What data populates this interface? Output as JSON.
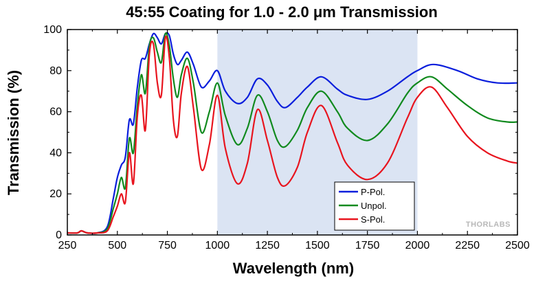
{
  "chart_data": {
    "type": "line",
    "title": "45:55 Coating for 1.0 - 2.0 μm Transmission",
    "xlabel": "Wavelength (nm)",
    "ylabel": "Transmission (%)",
    "xlim": [
      250,
      2500
    ],
    "ylim": [
      0,
      100
    ],
    "xticks": [
      250,
      500,
      750,
      1000,
      1250,
      1500,
      1750,
      2000,
      2250,
      2500
    ],
    "yticks": [
      0,
      20,
      40,
      60,
      80,
      100
    ],
    "grid": false,
    "legend_position": "bottom-right",
    "shaded_region": {
      "x": [
        1000,
        2000
      ],
      "color": "#dbe4f3"
    },
    "watermark": "THORLABS",
    "series": [
      {
        "name": "P-Pol.",
        "color": "#0a1edc",
        "x": [
          250,
          300,
          320,
          350,
          400,
          450,
          480,
          500,
          520,
          540,
          560,
          580,
          600,
          620,
          640,
          660,
          680,
          700,
          720,
          740,
          760,
          780,
          800,
          820,
          850,
          880,
          920,
          960,
          1000,
          1040,
          1100,
          1150,
          1200,
          1250,
          1300,
          1340,
          1400,
          1450,
          1520,
          1600,
          1650,
          1750,
          1850,
          1950,
          2000,
          2080,
          2200,
          2300,
          2400,
          2500
        ],
        "values": [
          1,
          1,
          2,
          1,
          1,
          4,
          18,
          28,
          34,
          38,
          56,
          54,
          72,
          85,
          86,
          93,
          98,
          96,
          93,
          98,
          97,
          88,
          83,
          85,
          89,
          83,
          72,
          75,
          80,
          70,
          64,
          67,
          76,
          73,
          65,
          62,
          67,
          72,
          77,
          71,
          68,
          66,
          70,
          77,
          80,
          83,
          80,
          76,
          74,
          74
        ]
      },
      {
        "name": "Unpol.",
        "color": "#118a1e",
        "x": [
          250,
          300,
          320,
          350,
          400,
          450,
          480,
          500,
          520,
          540,
          560,
          580,
          600,
          620,
          640,
          660,
          680,
          700,
          720,
          740,
          760,
          780,
          800,
          820,
          850,
          880,
          920,
          960,
          1000,
          1040,
          1100,
          1150,
          1200,
          1250,
          1300,
          1340,
          1400,
          1450,
          1520,
          1600,
          1650,
          1750,
          1850,
          1950,
          2000,
          2070,
          2150,
          2250,
          2350,
          2450,
          2500
        ],
        "values": [
          1,
          1,
          2,
          1,
          1,
          3,
          13,
          20,
          28,
          23,
          47,
          40,
          63,
          78,
          69,
          92,
          96,
          89,
          84,
          98,
          92,
          76,
          67,
          78,
          86,
          74,
          50,
          60,
          74,
          58,
          44,
          52,
          68,
          60,
          46,
          43,
          51,
          62,
          70,
          60,
          52,
          46,
          54,
          69,
          74,
          77,
          71,
          63,
          57,
          55,
          55
        ]
      },
      {
        "name": "S-Pol.",
        "color": "#e8141e",
        "x": [
          250,
          300,
          320,
          350,
          400,
          450,
          480,
          500,
          520,
          540,
          560,
          580,
          600,
          620,
          640,
          660,
          680,
          700,
          720,
          740,
          760,
          780,
          800,
          820,
          850,
          880,
          920,
          960,
          1000,
          1040,
          1100,
          1150,
          1200,
          1250,
          1300,
          1340,
          1400,
          1450,
          1520,
          1600,
          1650,
          1750,
          1850,
          1950,
          2000,
          2070,
          2150,
          2250,
          2350,
          2450,
          2500
        ],
        "values": [
          1,
          1,
          2,
          1,
          1,
          2,
          9,
          14,
          20,
          16,
          40,
          25,
          58,
          68,
          51,
          88,
          93,
          74,
          68,
          96,
          86,
          56,
          48,
          69,
          82,
          62,
          32,
          44,
          68,
          42,
          25,
          35,
          61,
          46,
          28,
          24,
          33,
          50,
          63,
          45,
          34,
          27,
          35,
          57,
          67,
          72,
          62,
          48,
          40,
          36,
          35
        ]
      }
    ]
  }
}
